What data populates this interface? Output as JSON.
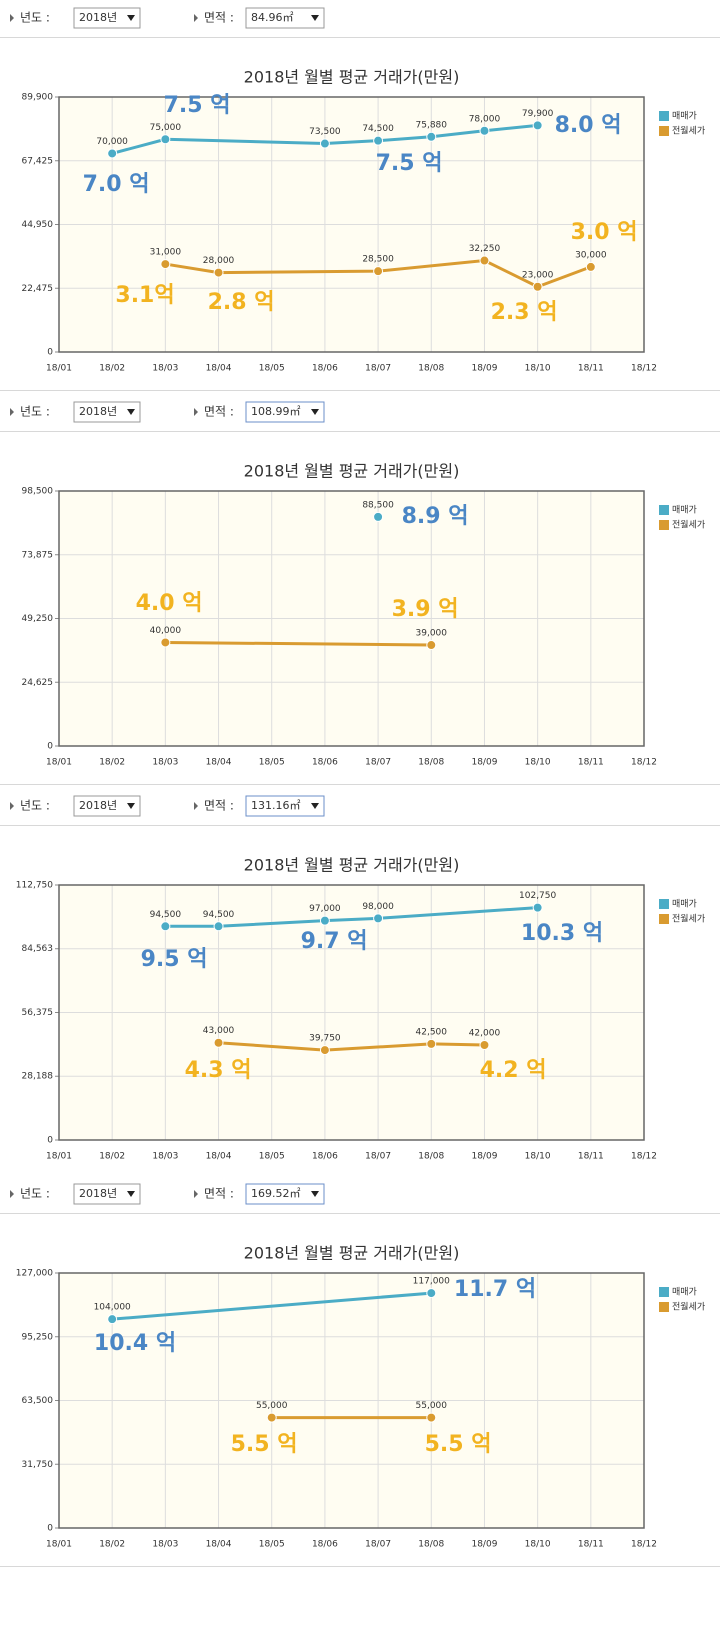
{
  "filters": [
    {
      "year_label": "년도 :",
      "year": "2018년",
      "area_label": "면적 :",
      "area": "84.96㎡"
    },
    {
      "year_label": "년도 :",
      "year": "2018년",
      "area_label": "면적 :",
      "area": "108.99㎡"
    },
    {
      "year_label": "년도 :",
      "year": "2018년",
      "area_label": "면적 :",
      "area": "131.16㎡"
    },
    {
      "year_label": "년도 :",
      "year": "2018년",
      "area_label": "면적 :",
      "area": "169.52㎡"
    }
  ],
  "chart_data": [
    {
      "type": "line",
      "title": "2018년 월별 평균 거래가(만원)",
      "categories": [
        "18/01",
        "18/02",
        "18/03",
        "18/04",
        "18/05",
        "18/06",
        "18/07",
        "18/08",
        "18/09",
        "18/10",
        "18/11",
        "18/12"
      ],
      "ylim": [
        0,
        89900
      ],
      "yticks": [
        0,
        {
          "value": 22475,
          "label": "22,475"
        },
        {
          "value": 44950,
          "label": "44,950"
        },
        {
          "value": 67425,
          "label": "67,425"
        },
        {
          "value": 89900,
          "label": "89,900"
        }
      ],
      "grid": true,
      "legend": "right",
      "series": [
        {
          "name": "매매가",
          "color": "#4bacc6",
          "x": [
            "18/02",
            "18/03",
            "18/06",
            "18/07",
            "18/08",
            "18/09",
            "18/10"
          ],
          "values": [
            70000,
            75000,
            73500,
            74500,
            75880,
            78000,
            79900
          ],
          "value_labels": [
            "70,000",
            "75,000",
            "73,500",
            "74,500",
            "75,880",
            "78,000",
            "79,900"
          ]
        },
        {
          "name": "전월세가",
          "color": "#d99b30",
          "x": [
            "18/03",
            "18/04",
            "18/07",
            "18/09",
            "18/10",
            "18/11"
          ],
          "values": [
            31000,
            28000,
            28500,
            32250,
            23000,
            30000
          ],
          "value_labels": [
            "31,000",
            "28,000",
            "28,500",
            "32,250",
            "23,000",
            "30,000"
          ]
        }
      ],
      "annotations": [
        {
          "text": "7.5 억",
          "color": "#4a86c5"
        },
        {
          "text": "8.0 억",
          "color": "#4a86c5"
        },
        {
          "text": "7.5 억",
          "color": "#4a86c5"
        },
        {
          "text": "7.0 억",
          "color": "#4a86c5"
        },
        {
          "text": "3.0 억",
          "color": "#f2b320"
        },
        {
          "text": "3.1억",
          "color": "#f2b320"
        },
        {
          "text": "2.8 억",
          "color": "#f2b320"
        },
        {
          "text": "2.3 억",
          "color": "#f2b320"
        }
      ]
    },
    {
      "type": "line",
      "title": "2018년 월별 평균 거래가(만원)",
      "categories": [
        "18/01",
        "18/02",
        "18/03",
        "18/04",
        "18/05",
        "18/06",
        "18/07",
        "18/08",
        "18/09",
        "18/10",
        "18/11",
        "18/12"
      ],
      "ylim": [
        0,
        98500
      ],
      "yticks": [
        0,
        {
          "value": 24625,
          "label": "24,625"
        },
        {
          "value": 49250,
          "label": "49,250"
        },
        {
          "value": 73875,
          "label": "73,875"
        },
        {
          "value": 98500,
          "label": "98,500"
        }
      ],
      "grid": true,
      "legend": "right",
      "series": [
        {
          "name": "매매가",
          "color": "#4bacc6",
          "x": [
            "18/07"
          ],
          "values": [
            88500
          ],
          "value_labels": [
            "88,500"
          ]
        },
        {
          "name": "전월세가",
          "color": "#d99b30",
          "x": [
            "18/03",
            "18/08"
          ],
          "values": [
            40000,
            39000
          ],
          "value_labels": [
            "40,000",
            "39,000"
          ]
        }
      ],
      "annotations": [
        {
          "text": "8.9 억",
          "color": "#4a86c5"
        },
        {
          "text": "4.0 억",
          "color": "#f2b320"
        },
        {
          "text": "3.9 억",
          "color": "#f2b320"
        }
      ]
    },
    {
      "type": "line",
      "title": "2018년 월별 평균 거래가(만원)",
      "categories": [
        "18/01",
        "18/02",
        "18/03",
        "18/04",
        "18/05",
        "18/06",
        "18/07",
        "18/08",
        "18/09",
        "18/10",
        "18/11",
        "18/12"
      ],
      "ylim": [
        0,
        112750
      ],
      "yticks": [
        0,
        {
          "value": 28188,
          "label": "28,188"
        },
        {
          "value": 56375,
          "label": "56,375"
        },
        {
          "value": 84563,
          "label": "84,563"
        },
        {
          "value": 112750,
          "label": "112,750"
        }
      ],
      "grid": true,
      "legend": "right",
      "series": [
        {
          "name": "매매가",
          "color": "#4bacc6",
          "x": [
            "18/03",
            "18/04",
            "18/06",
            "18/07",
            "18/10"
          ],
          "values": [
            94500,
            94500,
            97000,
            98000,
            102750
          ],
          "value_labels": [
            "94,500",
            "94,500",
            "97,000",
            "98,000",
            "102,750"
          ]
        },
        {
          "name": "전월세가",
          "color": "#d99b30",
          "x": [
            "18/04",
            "18/06",
            "18/08",
            "18/09"
          ],
          "values": [
            43000,
            39750,
            42500,
            42000
          ],
          "value_labels": [
            "43,000",
            "39,750",
            "42,500",
            "42,000"
          ]
        }
      ],
      "annotations": [
        {
          "text": "9.7 억",
          "color": "#4a86c5"
        },
        {
          "text": "10.3 억",
          "color": "#4a86c5"
        },
        {
          "text": "9.5 억",
          "color": "#4a86c5"
        },
        {
          "text": "4.3 억",
          "color": "#f2b320"
        },
        {
          "text": "4.2 억",
          "color": "#f2b320"
        }
      ]
    },
    {
      "type": "line",
      "title": "2018년 월별 평균 거래가(만원)",
      "categories": [
        "18/01",
        "18/02",
        "18/03",
        "18/04",
        "18/05",
        "18/06",
        "18/07",
        "18/08",
        "18/09",
        "18/10",
        "18/11",
        "18/12"
      ],
      "ylim": [
        0,
        127000
      ],
      "yticks": [
        0,
        {
          "value": 31750,
          "label": "31,750"
        },
        {
          "value": 63500,
          "label": "63,500"
        },
        {
          "value": 95250,
          "label": "95,250"
        },
        {
          "value": 127000,
          "label": "127,000"
        }
      ],
      "grid": true,
      "legend": "right",
      "series": [
        {
          "name": "매매가",
          "color": "#4bacc6",
          "x": [
            "18/02",
            "18/08"
          ],
          "values": [
            104000,
            117000
          ],
          "value_labels": [
            "104,000",
            "117,000"
          ]
        },
        {
          "name": "전월세가",
          "color": "#d99b30",
          "x": [
            "18/05",
            "18/08"
          ],
          "values": [
            55000,
            55000
          ],
          "value_labels": [
            "55,000",
            "55,000"
          ]
        }
      ],
      "annotations": [
        {
          "text": "11.7 억",
          "color": "#4a86c5"
        },
        {
          "text": "10.4 억",
          "color": "#4a86c5"
        },
        {
          "text": "5.5 억",
          "color": "#f2b320"
        },
        {
          "text": "5.5 억",
          "color": "#f2b320"
        }
      ]
    }
  ]
}
